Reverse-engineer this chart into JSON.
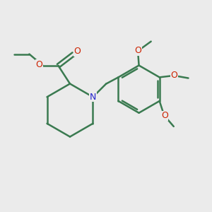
{
  "bg_color": "#ebebeb",
  "bond_color": "#3a7a50",
  "N_color": "#2222cc",
  "O_color": "#cc2200",
  "bond_width": 1.8,
  "font_size": 8.5,
  "figsize": [
    3.0,
    3.0
  ],
  "dpi": 100,
  "xlim": [
    0,
    10
  ],
  "ylim": [
    0,
    10
  ]
}
